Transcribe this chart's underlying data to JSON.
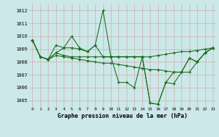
{
  "title": "Graphe pression niveau de la mer (hPa)",
  "bg_color": "#cce8e8",
  "grid_color_major": "#ccaaaa",
  "line_color": "#1a6b1a",
  "x_ticks": [
    0,
    1,
    2,
    3,
    4,
    5,
    6,
    7,
    8,
    9,
    10,
    11,
    12,
    13,
    14,
    15,
    16,
    17,
    18,
    19,
    20,
    21,
    22,
    23
  ],
  "ylim": [
    1004.5,
    1012.5
  ],
  "yticks": [
    1005,
    1006,
    1007,
    1008,
    1009,
    1010,
    1011,
    1012
  ],
  "series": [
    [
      1009.7,
      1008.4,
      1008.2,
      1009.3,
      1009.1,
      1010.0,
      1009.1,
      1008.8,
      1009.3,
      1012.0,
      1008.4,
      1008.4,
      1008.4,
      1008.4,
      1008.4,
      1004.8,
      1004.7,
      1006.4,
      1006.3,
      1007.2,
      1008.3,
      1008.0,
      1008.7,
      1009.1
    ],
    [
      1009.7,
      1008.4,
      1008.2,
      1008.7,
      1009.1,
      1009.1,
      1009.0,
      1008.8,
      1009.3,
      1008.4,
      1008.4,
      1006.4,
      1006.4,
      1006.0,
      1008.4,
      1004.8,
      1004.7,
      1006.4,
      1007.2,
      1007.2,
      1008.3,
      1008.0,
      1008.7,
      1009.1
    ],
    [
      1009.7,
      1008.4,
      1008.2,
      1008.7,
      1008.5,
      1008.4,
      1008.4,
      1008.4,
      1008.4,
      1008.4,
      1008.4,
      1008.4,
      1008.4,
      1008.4,
      1008.4,
      1008.4,
      1008.5,
      1008.6,
      1008.7,
      1008.8,
      1008.8,
      1008.9,
      1009.0,
      1009.1
    ],
    [
      1009.7,
      1008.4,
      1008.2,
      1008.5,
      1008.4,
      1008.3,
      1008.2,
      1008.1,
      1008.0,
      1007.9,
      1007.9,
      1007.8,
      1007.7,
      1007.6,
      1007.5,
      1007.4,
      1007.4,
      1007.3,
      1007.2,
      1007.2,
      1007.2,
      1008.0,
      1008.7,
      1009.1
    ]
  ]
}
